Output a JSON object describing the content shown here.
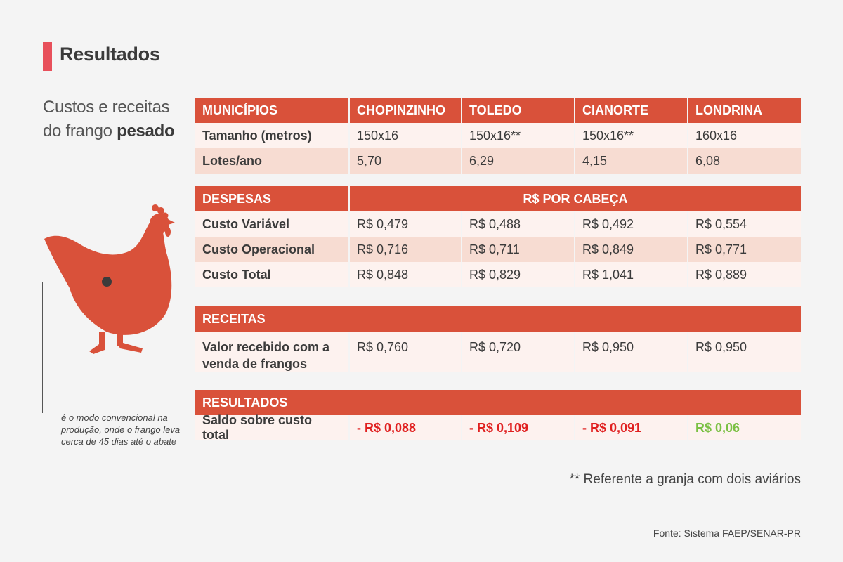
{
  "title": "Resultados",
  "subtitle": {
    "line1": "Custos e receitas",
    "line2_prefix": "do frango ",
    "line2_bold": "pesado"
  },
  "note": "é o modo convencional na produção, onde o frango leva cerca de 45 dias até o abate",
  "colors": {
    "accent": "#e8505b",
    "header": "#d9513a",
    "negative": "#e02020",
    "positive": "#7ac043",
    "chicken": "#d9513a"
  },
  "table1": {
    "header": [
      "MUNICÍPIOS",
      "CHOPINZINHO",
      "TOLEDO",
      "CIANORTE",
      "LONDRINA"
    ],
    "rows": [
      [
        "Tamanho (metros)",
        "150x16",
        "150x16**",
        "150x16**",
        "160x16"
      ],
      [
        "Lotes/ano",
        "5,70",
        "6,29",
        "4,15",
        "6,08"
      ]
    ]
  },
  "table2": {
    "header": [
      "DESPESAS",
      "R$ POR CABEÇA"
    ],
    "rows": [
      [
        "Custo Variável",
        "R$ 0,479",
        "R$ 0,488",
        "R$ 0,492",
        "R$ 0,554"
      ],
      [
        "Custo Operacional",
        "R$ 0,716",
        "R$ 0,711",
        "R$ 0,849",
        "R$ 0,771"
      ],
      [
        "Custo Total",
        "R$ 0,848",
        "R$ 0,829",
        "R$ 1,041",
        "R$ 0,889"
      ]
    ]
  },
  "table3": {
    "header": "RECEITAS",
    "rows": [
      [
        "Valor recebido com a venda de frangos",
        "R$ 0,760",
        "R$ 0,720",
        "R$ 0,950",
        "R$ 0,950"
      ]
    ]
  },
  "table4": {
    "header": "RESULTADOS",
    "rows": [
      [
        "Saldo sobre custo total",
        "- R$ 0,088",
        "- R$ 0,109",
        "- R$ 0,091",
        "R$ 0,06"
      ]
    ]
  },
  "footnote": "** Referente a granja com dois aviários",
  "source": "Fonte: Sistema FAEP/SENAR-PR"
}
